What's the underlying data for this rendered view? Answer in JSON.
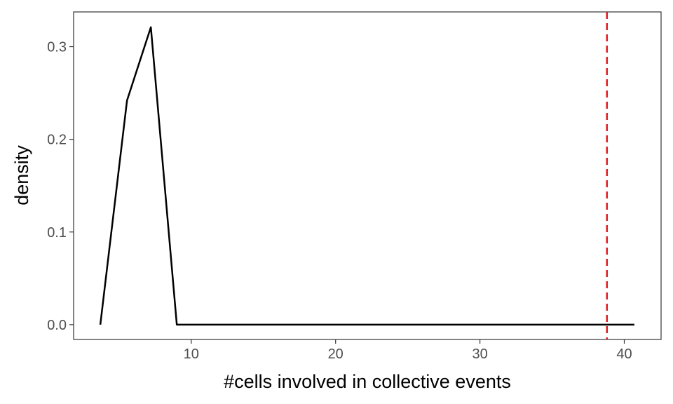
{
  "chart_data": {
    "type": "line",
    "title": "",
    "xlabel": "#cells involved in collective events",
    "ylabel": "density",
    "xlim": [
      1.85,
      42.55
    ],
    "ylim": [
      -0.016,
      0.3375
    ],
    "x_ticks": [
      10,
      20,
      30,
      40
    ],
    "y_ticks": [
      0.0,
      0.1,
      0.2,
      0.3
    ],
    "x_tick_labels": [
      "10",
      "20",
      "30",
      "40"
    ],
    "y_tick_labels": [
      "0.0",
      "0.1",
      "0.2",
      "0.3"
    ],
    "grid": false,
    "series": [
      {
        "x": [
          3.7,
          5.55,
          7.2,
          9.0,
          40.7
        ],
        "y": [
          0.0,
          0.242,
          0.321,
          0.0,
          0.0
        ],
        "color": "#000000"
      }
    ],
    "reference_lines": [
      {
        "orientation": "vertical",
        "x": 38.8,
        "color": "#e31a1c",
        "style": "dashed"
      }
    ]
  }
}
